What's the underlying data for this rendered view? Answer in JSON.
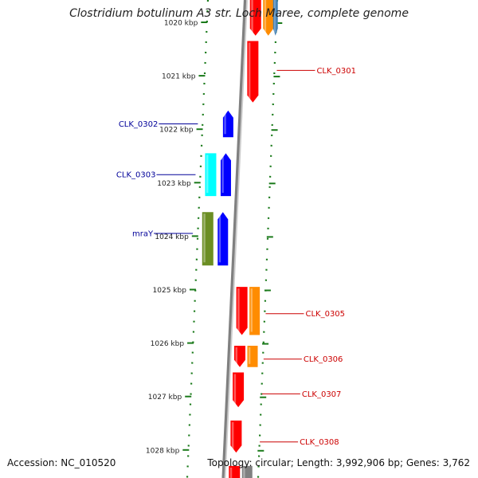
{
  "title": "Clostridium botulinum A3 str. Loch Maree, complete genome",
  "footer": {
    "accession": "Accession: NC_010520",
    "topology": "Topology: circular; Length: 3,992,906 bp; Genes: 3,762"
  },
  "colors": {
    "backbone": "#808080",
    "ticks": "#1a7a1a",
    "label_red": "#cc0000",
    "label_blue": "#000099",
    "red": "#ff0000",
    "orange": "#ff8c00",
    "blue": "#0000ff",
    "cyan": "#00ffff",
    "olive": "#6b8e23",
    "steel": "#4682b4"
  },
  "ticks": [
    {
      "label": "1020 kbp",
      "kbp": 1020
    },
    {
      "label": "1021 kbp",
      "kbp": 1021
    },
    {
      "label": "1022 kbp",
      "kbp": 1022
    },
    {
      "label": "1023 kbp",
      "kbp": 1023
    },
    {
      "label": "1024 kbp",
      "kbp": 1024
    },
    {
      "label": "1025 kbp",
      "kbp": 1025
    },
    {
      "label": "1026 kbp",
      "kbp": 1026
    },
    {
      "label": "1027 kbp",
      "kbp": 1027
    },
    {
      "label": "1028 kbp",
      "kbp": 1028
    }
  ],
  "features": [
    {
      "id": "gene-top-red",
      "track": 1,
      "start": 1019.4,
      "end": 1020.25,
      "strand": "reverse",
      "color": "red"
    },
    {
      "id": "gene-top-orange",
      "track": 2,
      "start": 1019.4,
      "end": 1020.25,
      "strand": "reverse",
      "color": "orange"
    },
    {
      "id": "gene-top-steel",
      "track": 3,
      "start": 1019.4,
      "end": 1020.25,
      "strand": "reverse",
      "color": "steel"
    },
    {
      "id": "CLK_0301",
      "label": "CLK_0301",
      "side": "right",
      "track": 1,
      "start": 1020.35,
      "end": 1021.5,
      "strand": "reverse",
      "color": "red",
      "label_kbp": 1020.9
    },
    {
      "id": "CLK_0302",
      "label": "CLK_0302",
      "side": "left",
      "track": -1,
      "start": 1021.65,
      "end": 1022.15,
      "strand": "forward",
      "color": "blue",
      "label_kbp": 1021.9
    },
    {
      "id": "CLK_0303",
      "label": "CLK_0303",
      "side": "left",
      "track": -1,
      "start": 1022.45,
      "end": 1023.25,
      "strand": "forward",
      "color": "blue",
      "label_kbp": 1022.85
    },
    {
      "id": "gene-cyan",
      "track": -2,
      "start": 1022.45,
      "end": 1023.25,
      "strand": "none",
      "color": "cyan"
    },
    {
      "id": "mraY",
      "label": "mraY",
      "side": "left",
      "track": -1,
      "start": 1023.55,
      "end": 1024.55,
      "strand": "forward",
      "color": "blue",
      "label_kbp": 1023.95
    },
    {
      "id": "gene-olive",
      "track": -2,
      "start": 1023.55,
      "end": 1024.55,
      "strand": "none",
      "color": "olive"
    },
    {
      "id": "CLK_0305",
      "label": "CLK_0305",
      "side": "right",
      "track": 1,
      "start": 1024.95,
      "end": 1025.85,
      "strand": "reverse",
      "color": "red",
      "label_kbp": 1025.45
    },
    {
      "id": "gene-orange-0305",
      "track": 2,
      "start": 1024.95,
      "end": 1025.85,
      "strand": "none",
      "color": "orange"
    },
    {
      "id": "CLK_0306",
      "label": "CLK_0306",
      "side": "right",
      "track": 1,
      "start": 1026.05,
      "end": 1026.45,
      "strand": "reverse",
      "color": "red",
      "label_kbp": 1026.3
    },
    {
      "id": "gene-orange-0306",
      "track": 2,
      "start": 1026.05,
      "end": 1026.45,
      "strand": "none",
      "color": "orange"
    },
    {
      "id": "CLK_0307",
      "label": "CLK_0307",
      "side": "right",
      "track": 1,
      "start": 1026.55,
      "end": 1027.2,
      "strand": "reverse",
      "color": "red",
      "label_kbp": 1026.95
    },
    {
      "id": "CLK_0308",
      "label": "CLK_0308",
      "side": "right",
      "track": 1,
      "start": 1027.45,
      "end": 1028.05,
      "strand": "reverse",
      "color": "red",
      "label_kbp": 1027.85
    },
    {
      "id": "gene-bottom-red",
      "track": 1,
      "start": 1028.3,
      "end": 1028.6,
      "strand": "none",
      "color": "red"
    },
    {
      "id": "gene-bottom-grey",
      "track": 2,
      "start": 1028.3,
      "end": 1028.6,
      "strand": "none",
      "color": "backbone"
    }
  ]
}
